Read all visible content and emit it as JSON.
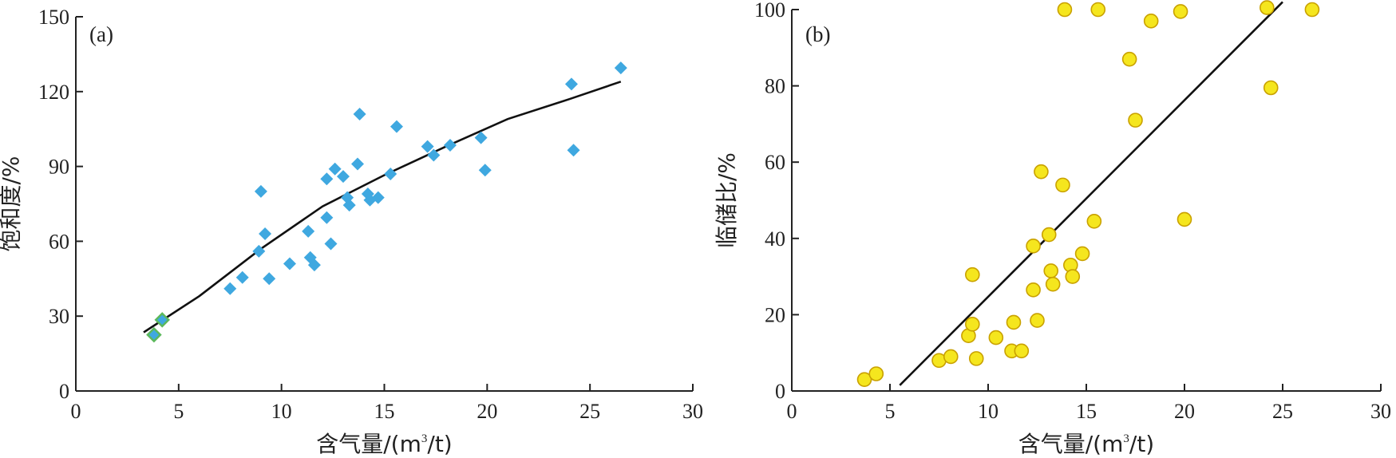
{
  "chart_data": [
    {
      "type": "scatter",
      "panel_label": "(a)",
      "xlabel_prefix": "含气量/(m",
      "xlabel_sup": "3",
      "xlabel_suffix": "/t)",
      "ylabel": "饱和度/%",
      "xlim": [
        0,
        30
      ],
      "ylim": [
        0,
        150
      ],
      "xticks": [
        0,
        5,
        10,
        15,
        20,
        25,
        30
      ],
      "yticks": [
        0,
        30,
        60,
        90,
        120,
        150
      ],
      "marker": "diamond",
      "marker_color": "#3fa8e0",
      "highlight_color": "#5cb85c",
      "points": [
        [
          3.8,
          22.5
        ],
        [
          4.2,
          28.5
        ],
        [
          7.5,
          41
        ],
        [
          8.1,
          45.5
        ],
        [
          8.9,
          56
        ],
        [
          9.0,
          80
        ],
        [
          9.2,
          63
        ],
        [
          9.4,
          45
        ],
        [
          10.4,
          51
        ],
        [
          11.3,
          64
        ],
        [
          11.4,
          53.5
        ],
        [
          11.6,
          50.5
        ],
        [
          12.2,
          69.5
        ],
        [
          12.2,
          85
        ],
        [
          12.4,
          59
        ],
        [
          12.6,
          89
        ],
        [
          13.0,
          86
        ],
        [
          13.2,
          77.5
        ],
        [
          13.3,
          74.5
        ],
        [
          13.7,
          91
        ],
        [
          13.8,
          111
        ],
        [
          14.2,
          79
        ],
        [
          14.3,
          76.5
        ],
        [
          14.7,
          77.5
        ],
        [
          15.3,
          87
        ],
        [
          15.6,
          106
        ],
        [
          17.1,
          98
        ],
        [
          17.4,
          94.5
        ],
        [
          18.2,
          98.5
        ],
        [
          19.7,
          101.5
        ],
        [
          19.9,
          88.5
        ],
        [
          24.1,
          123
        ],
        [
          24.2,
          96.5
        ],
        [
          26.5,
          129.5
        ]
      ],
      "highlight_points": [
        0,
        1
      ],
      "fit_line": [
        [
          3.3,
          23.5
        ],
        [
          6,
          38
        ],
        [
          9,
          57
        ],
        [
          12,
          74
        ],
        [
          15,
          86.5
        ],
        [
          18,
          98
        ],
        [
          21,
          109
        ],
        [
          24,
          117
        ],
        [
          26.5,
          124
        ]
      ]
    },
    {
      "type": "scatter",
      "panel_label": "(b)",
      "xlabel_prefix": "含气量/(m",
      "xlabel_sup": "3",
      "xlabel_suffix": "/t)",
      "ylabel": "临储比/%",
      "xlim": [
        0,
        30
      ],
      "ylim": [
        0,
        100
      ],
      "xticks": [
        0,
        5,
        10,
        15,
        20,
        25,
        30
      ],
      "yticks": [
        0,
        20,
        40,
        60,
        80,
        100
      ],
      "marker": "circle",
      "marker_color": "#f5e61e",
      "marker_edge": "#c9a100",
      "points": [
        [
          3.7,
          3
        ],
        [
          4.3,
          4.5
        ],
        [
          7.5,
          8
        ],
        [
          8.1,
          9
        ],
        [
          9.0,
          14.5
        ],
        [
          9.2,
          17.5
        ],
        [
          9.2,
          30.5
        ],
        [
          9.4,
          8.5
        ],
        [
          10.4,
          14
        ],
        [
          11.2,
          10.5
        ],
        [
          11.3,
          18
        ],
        [
          11.7,
          10.5
        ],
        [
          12.3,
          38
        ],
        [
          12.3,
          26.5
        ],
        [
          12.5,
          18.5
        ],
        [
          12.7,
          57.5
        ],
        [
          13.1,
          41
        ],
        [
          13.2,
          31.5
        ],
        [
          13.3,
          28
        ],
        [
          13.8,
          54
        ],
        [
          13.9,
          100
        ],
        [
          14.2,
          33
        ],
        [
          14.3,
          30
        ],
        [
          14.8,
          36
        ],
        [
          15.4,
          44.5
        ],
        [
          15.6,
          100
        ],
        [
          17.2,
          87
        ],
        [
          17.5,
          71
        ],
        [
          18.3,
          97
        ],
        [
          19.8,
          99.5
        ],
        [
          20.0,
          45
        ],
        [
          24.2,
          100.5
        ],
        [
          24.4,
          79.5
        ],
        [
          26.5,
          100
        ]
      ],
      "fit_line": [
        [
          5.5,
          1.5
        ],
        [
          25.0,
          102
        ]
      ]
    }
  ]
}
